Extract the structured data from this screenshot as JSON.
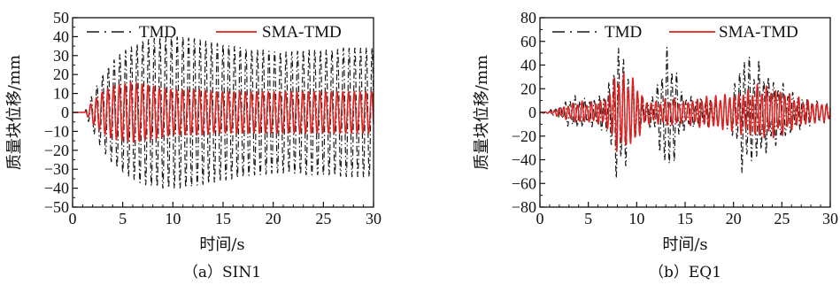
{
  "chart_data": [
    {
      "type": "line",
      "caption": "（a）SIN1",
      "xlabel": "时间/s",
      "ylabel": "质量块位移/mm",
      "xlim": [
        0,
        30
      ],
      "ylim": [
        -50,
        50
      ],
      "xticks": [
        "0",
        "5",
        "10",
        "15",
        "20",
        "25",
        "30"
      ],
      "yticks": [
        "50",
        "40",
        "30",
        "20",
        "10",
        "0",
        "−10",
        "−20",
        "−30",
        "−40",
        "−50"
      ],
      "legend_position": "top",
      "series": [
        {
          "name": "TMD",
          "color": "#1a1a1a",
          "style": "dash-dot",
          "x": [
            0,
            1.2,
            2,
            3,
            4,
            5,
            6,
            7,
            8,
            9,
            10,
            11,
            12,
            13,
            14,
            15,
            16,
            17,
            18,
            19,
            20,
            21,
            22,
            23,
            24,
            25,
            26,
            27,
            28,
            29,
            30
          ],
          "amplitude": [
            0,
            0,
            10,
            20,
            27,
            32,
            35,
            38,
            39,
            40,
            40,
            40,
            39,
            38,
            37,
            36,
            35,
            34,
            33,
            33,
            32,
            32,
            32,
            33,
            33,
            33,
            33,
            34,
            34,
            34,
            34
          ],
          "frequency_hz": 1.75
        },
        {
          "name": "SMA-TMD",
          "color": "#e0201e",
          "style": "solid",
          "x": [
            0,
            1.2,
            2,
            3,
            4,
            5,
            6,
            7,
            8,
            9,
            10,
            11,
            12,
            13,
            14,
            15,
            16,
            17,
            18,
            19,
            20,
            21,
            22,
            23,
            24,
            25,
            26,
            27,
            28,
            29,
            30
          ],
          "amplitude": [
            0,
            0,
            6,
            11,
            14,
            15,
            16,
            15,
            14,
            13,
            12,
            12,
            12,
            12,
            11,
            11,
            11,
            11,
            11,
            11,
            11,
            11,
            11,
            11,
            11,
            11,
            11,
            11,
            11,
            11,
            11
          ],
          "frequency_hz": 1.75
        }
      ]
    },
    {
      "type": "line",
      "caption": "（b）EQ1",
      "xlabel": "时间/s",
      "ylabel": "质量块位移/mm",
      "xlim": [
        0,
        30
      ],
      "ylim": [
        -80,
        80
      ],
      "xticks": [
        "0",
        "5",
        "10",
        "15",
        "20",
        "25",
        "30"
      ],
      "yticks": [
        "80",
        "60",
        "40",
        "20",
        "0",
        "−20",
        "−40",
        "−60",
        "−80"
      ],
      "legend_position": "top",
      "series": [
        {
          "name": "TMD",
          "color": "#1a1a1a",
          "style": "dash-dot",
          "x": [
            0,
            1,
            2,
            3,
            4,
            5,
            6,
            7,
            7.5,
            8,
            8.5,
            9,
            9.5,
            10,
            10.5,
            11,
            12,
            12.5,
            13,
            13.5,
            14,
            14.5,
            15,
            16,
            17,
            18,
            19,
            20,
            20.5,
            21,
            21.5,
            22,
            22.5,
            23,
            24,
            25,
            26,
            27,
            28,
            29,
            30
          ],
          "amplitude": [
            0,
            2,
            5,
            13,
            15,
            11,
            14,
            20,
            42,
            62,
            57,
            42,
            30,
            22,
            14,
            10,
            20,
            40,
            55,
            55,
            40,
            24,
            14,
            14,
            12,
            12,
            14,
            22,
            38,
            55,
            52,
            42,
            46,
            40,
            30,
            26,
            18,
            14,
            12,
            10,
            8
          ],
          "frequency_hz": 2.0
        },
        {
          "name": "SMA-TMD",
          "color": "#e0201e",
          "style": "solid",
          "x": [
            0,
            1,
            2,
            3,
            4,
            5,
            6,
            7,
            7.5,
            8,
            8.5,
            9,
            9.5,
            10,
            10.5,
            11,
            12,
            12.5,
            13,
            13.5,
            14,
            14.5,
            15,
            16,
            17,
            18,
            19,
            20,
            20.5,
            21,
            21.5,
            22,
            22.5,
            23,
            24,
            25,
            26,
            27,
            28,
            29,
            30
          ],
          "amplitude": [
            0,
            1,
            4,
            7,
            10,
            9,
            10,
            14,
            28,
            36,
            34,
            32,
            30,
            28,
            16,
            10,
            10,
            10,
            12,
            13,
            12,
            10,
            10,
            12,
            14,
            14,
            16,
            16,
            18,
            20,
            20,
            22,
            24,
            24,
            22,
            20,
            16,
            12,
            10,
            8,
            8
          ],
          "frequency_hz": 2.1
        }
      ]
    }
  ]
}
